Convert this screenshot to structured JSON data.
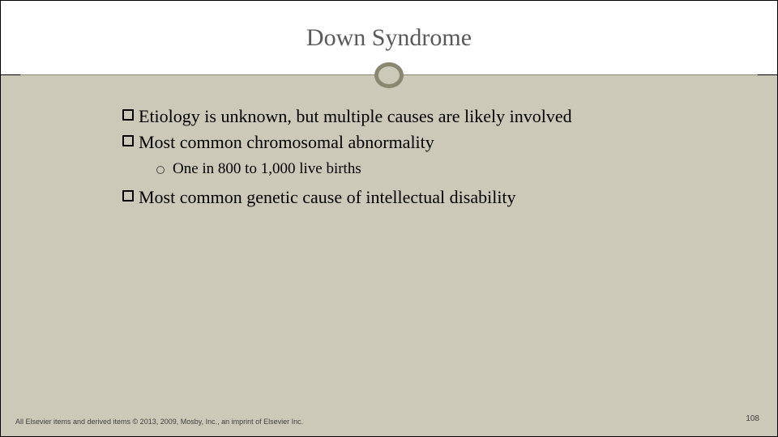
{
  "slide": {
    "title": "Down Syndrome",
    "title_color": "#595959",
    "title_fontsize": 30,
    "background_color": "#cdc9b8",
    "title_bg_color": "#ffffff",
    "accent_color": "#8a8672",
    "bullets": [
      {
        "level": 1,
        "text": "Etiology is unknown, but multiple causes are likely involved"
      },
      {
        "level": 1,
        "text": "Most common chromosomal abnormality"
      },
      {
        "level": 2,
        "text": "One in 800 to 1,000 live births"
      },
      {
        "level": 1,
        "text": "Most common genetic cause of intellectual disability"
      }
    ],
    "bullet_l1_fontsize": 22,
    "bullet_l2_fontsize": 19,
    "footer_copyright": "All Elsevier items and derived items © 2013, 2009, Mosby, Inc., an imprint of Elsevier Inc.",
    "page_number": "108",
    "footer_fontsize": 9
  }
}
